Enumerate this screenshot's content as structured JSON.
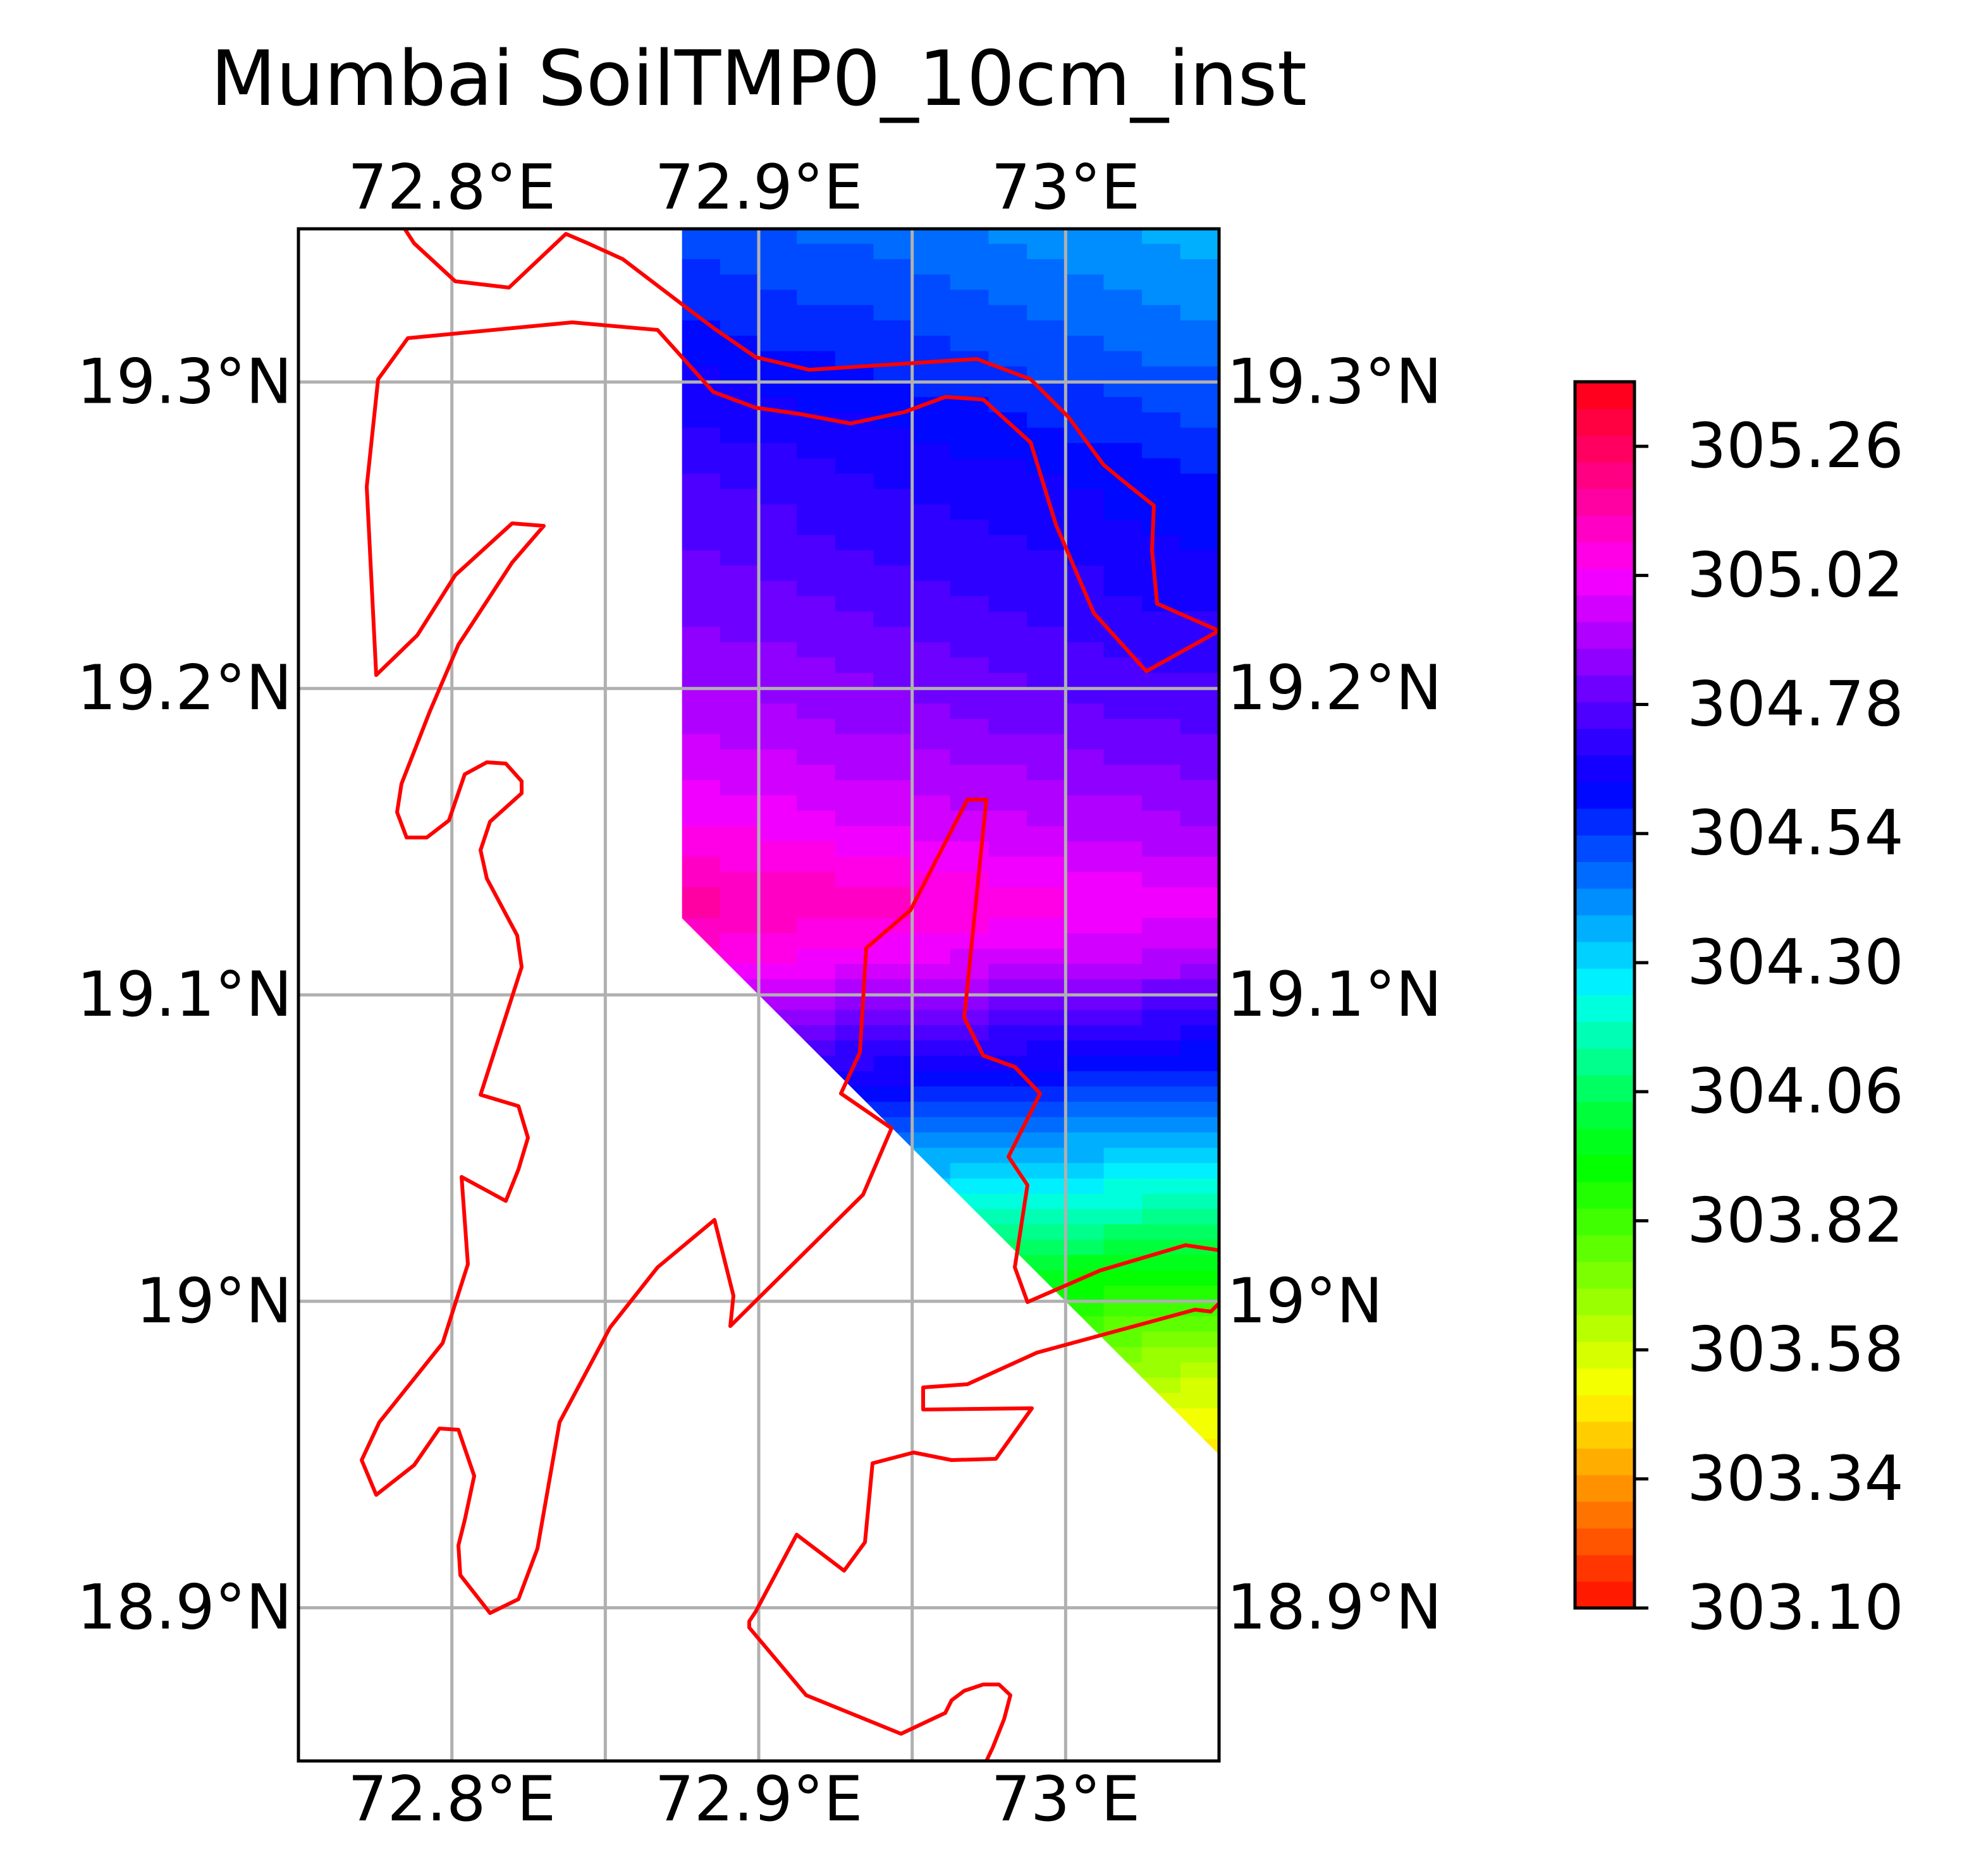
{
  "title": "Mumbai SoilTMP0_10cm_inst",
  "map": {
    "lon_range": [
      72.75,
      73.05
    ],
    "lat_range": [
      18.85,
      19.35
    ],
    "lon_ticks": [
      {
        "value": 72.8,
        "label": "72.8°E"
      },
      {
        "value": 72.9,
        "label": "72.9°E"
      },
      {
        "value": 73.0,
        "label": "73°E"
      }
    ],
    "lon_gridlines": [
      72.8,
      72.85,
      72.9,
      72.95,
      73.0
    ],
    "lat_ticks": [
      {
        "value": 19.3,
        "label": "19.3°N"
      },
      {
        "value": 19.2,
        "label": "19.2°N"
      },
      {
        "value": 19.1,
        "label": "19.1°N"
      },
      {
        "value": 19.0,
        "label": "19°N"
      },
      {
        "value": 18.9,
        "label": "18.9°N"
      }
    ],
    "coastline_color": "#ff0000",
    "gridline_color": "#b0b0b0"
  },
  "chart_data": {
    "type": "heatmap",
    "variable": "SoilTMP0_10cm_inst",
    "title": "Mumbai SoilTMP0_10cm_inst",
    "value_range": [
      303.1,
      305.38
    ],
    "data_domain_polygon": [
      [
        72.875,
        19.35
      ],
      [
        73.05,
        19.35
      ],
      [
        73.05,
        18.95
      ],
      [
        72.875,
        19.125
      ]
    ],
    "sample_points": [
      {
        "lon": 72.9,
        "lat": 19.34,
        "value": 304.55
      },
      {
        "lon": 73.0,
        "lat": 19.3,
        "value": 304.7
      },
      {
        "lon": 72.9,
        "lat": 19.25,
        "value": 304.8
      },
      {
        "lon": 72.9,
        "lat": 19.2,
        "value": 304.9
      },
      {
        "lon": 72.9,
        "lat": 19.15,
        "value": 305.1
      },
      {
        "lon": 72.9,
        "lat": 19.13,
        "value": 305.16
      },
      {
        "lon": 72.95,
        "lat": 19.08,
        "value": 304.72
      },
      {
        "lon": 72.97,
        "lat": 19.05,
        "value": 304.5
      },
      {
        "lon": 73.0,
        "lat": 19.02,
        "value": 304.2
      },
      {
        "lon": 73.0,
        "lat": 19.0,
        "value": 303.95
      },
      {
        "lon": 73.04,
        "lat": 18.97,
        "value": 303.7
      }
    ]
  },
  "colorbar": {
    "min": 303.1,
    "max": 305.38,
    "ticks": [
      {
        "value": 303.1,
        "label": "303.10"
      },
      {
        "value": 303.34,
        "label": "303.34"
      },
      {
        "value": 303.58,
        "label": "303.58"
      },
      {
        "value": 303.82,
        "label": "303.82"
      },
      {
        "value": 304.06,
        "label": "304.06"
      },
      {
        "value": 304.3,
        "label": "304.30"
      },
      {
        "value": 304.54,
        "label": "304.54"
      },
      {
        "value": 304.78,
        "label": "304.78"
      },
      {
        "value": 305.02,
        "label": "305.02"
      },
      {
        "value": 305.26,
        "label": "305.26"
      }
    ],
    "colors": [
      "#ff1a00",
      "#ff3600",
      "#ff5500",
      "#ff7300",
      "#ff9100",
      "#ffae00",
      "#ffcd00",
      "#ffeb00",
      "#f4ff00",
      "#d6ff00",
      "#b8ff00",
      "#9aff00",
      "#7cff00",
      "#5eff00",
      "#40ff00",
      "#22ff00",
      "#04ff00",
      "#00ff1a",
      "#00ff3a",
      "#00ff63",
      "#00ff8c",
      "#00ffb4",
      "#00ffdd",
      "#00f0ff",
      "#00d1ff",
      "#00b0ff",
      "#008eff",
      "#006cff",
      "#004bff",
      "#002aff",
      "#0008ff",
      "#1400ff",
      "#2e00ff",
      "#4d00ff",
      "#6e00ff",
      "#8f00ff",
      "#b000ff",
      "#d100ff",
      "#f200ff",
      "#ff00e6",
      "#ff00c4",
      "#ff00a3",
      "#ff0082",
      "#ff0061",
      "#ff0040",
      "#ff001f"
    ]
  }
}
